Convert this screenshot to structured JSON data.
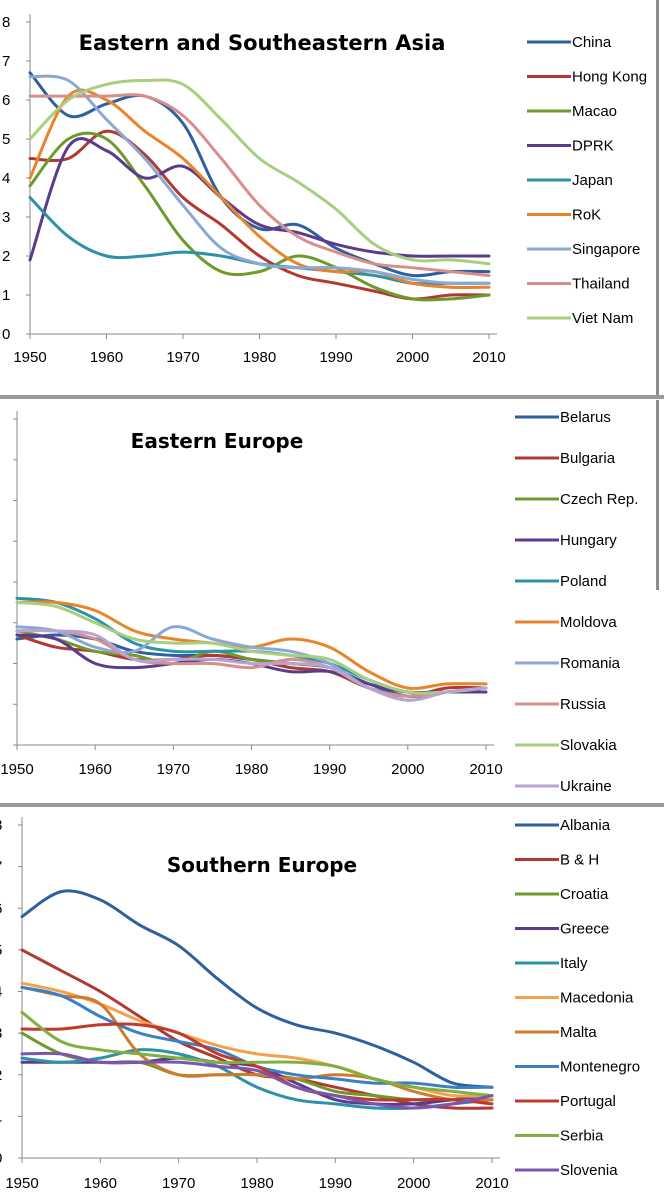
{
  "chart_data": [
    {
      "type": "line",
      "title": "Eastern and Southeastern Asia",
      "x": [
        1950,
        1955,
        1960,
        1965,
        1970,
        1975,
        1980,
        1985,
        1990,
        1995,
        2000,
        2005,
        2010
      ],
      "xticks": [
        "1950",
        "1960",
        "1970",
        "1980",
        "1990",
        "2000",
        "2010"
      ],
      "yticks": [
        "0",
        "1",
        "2",
        "3",
        "4",
        "5",
        "6",
        "7",
        "8"
      ],
      "ylim": [
        0,
        8
      ],
      "series": [
        {
          "name": "China",
          "color": "#2e5f9e",
          "values": [
            6.7,
            5.6,
            5.9,
            6.1,
            5.4,
            3.5,
            2.7,
            2.8,
            2.2,
            1.8,
            1.5,
            1.6,
            1.6
          ]
        },
        {
          "name": "Hong Kong",
          "color": "#b03a32",
          "values": [
            4.5,
            4.5,
            5.2,
            4.6,
            3.5,
            2.8,
            2.0,
            1.5,
            1.3,
            1.1,
            0.9,
            1.0,
            1.0
          ]
        },
        {
          "name": "Macao",
          "color": "#6e9a2c",
          "values": [
            3.8,
            5.0,
            5.0,
            3.8,
            2.4,
            1.6,
            1.6,
            2.0,
            1.7,
            1.2,
            0.9,
            0.9,
            1.0
          ]
        },
        {
          "name": "DPRK",
          "color": "#5c3b8c",
          "values": [
            1.9,
            4.8,
            4.7,
            4.0,
            4.3,
            3.5,
            2.8,
            2.6,
            2.3,
            2.1,
            2.0,
            2.0,
            2.0
          ]
        },
        {
          "name": "Japan",
          "color": "#2d91a8",
          "values": [
            3.5,
            2.5,
            2.0,
            2.0,
            2.1,
            2.0,
            1.8,
            1.7,
            1.6,
            1.5,
            1.3,
            1.3,
            1.3
          ]
        },
        {
          "name": "RoK",
          "color": "#e8842a",
          "values": [
            4.0,
            6.1,
            6.0,
            5.2,
            4.5,
            3.5,
            2.5,
            1.8,
            1.6,
            1.6,
            1.3,
            1.2,
            1.2
          ]
        },
        {
          "name": "Singapore",
          "color": "#8aa8d6",
          "values": [
            6.6,
            6.5,
            5.5,
            4.5,
            3.3,
            2.2,
            1.8,
            1.7,
            1.7,
            1.6,
            1.4,
            1.3,
            1.3
          ]
        },
        {
          "name": "Thailand",
          "color": "#d98e8e",
          "values": [
            6.1,
            6.1,
            6.1,
            6.1,
            5.6,
            4.5,
            3.3,
            2.5,
            2.1,
            1.8,
            1.7,
            1.6,
            1.5
          ]
        },
        {
          "name": "Viet Nam",
          "color": "#a8cf7e",
          "values": [
            5.0,
            6.0,
            6.4,
            6.5,
            6.4,
            5.5,
            4.5,
            3.9,
            3.2,
            2.3,
            1.9,
            1.9,
            1.8
          ]
        }
      ]
    },
    {
      "type": "line",
      "title": "Eastern Europe",
      "x": [
        1950,
        1955,
        1960,
        1965,
        1970,
        1975,
        1980,
        1985,
        1990,
        1995,
        2000,
        2005,
        2010
      ],
      "xticks": [
        "1950",
        "1960",
        "1970",
        "1980",
        "1990",
        "2000",
        "2010"
      ],
      "yticks": [],
      "ylim": [
        0,
        8
      ],
      "series": [
        {
          "name": "Belarus",
          "color": "#2e5f9e",
          "values": [
            2.6,
            2.7,
            2.6,
            2.3,
            2.2,
            2.2,
            2.1,
            2.0,
            1.9,
            1.5,
            1.2,
            1.3,
            1.4
          ]
        },
        {
          "name": "Bulgaria",
          "color": "#b03a32",
          "values": [
            2.7,
            2.4,
            2.3,
            2.1,
            2.1,
            2.2,
            2.1,
            1.9,
            1.8,
            1.4,
            1.2,
            1.4,
            1.4
          ]
        },
        {
          "name": "Czech Rep.",
          "color": "#6e9a2c",
          "values": [
            2.8,
            2.6,
            2.3,
            2.2,
            2.0,
            2.3,
            2.1,
            2.0,
            1.9,
            1.4,
            1.1,
            1.3,
            1.4
          ]
        },
        {
          "name": "Hungary",
          "color": "#5c3b8c",
          "values": [
            2.7,
            2.6,
            2.0,
            1.9,
            2.0,
            2.1,
            2.0,
            1.8,
            1.8,
            1.5,
            1.3,
            1.3,
            1.3
          ]
        },
        {
          "name": "Poland",
          "color": "#2d91a8",
          "values": [
            3.6,
            3.5,
            3.1,
            2.5,
            2.3,
            2.3,
            2.3,
            2.2,
            2.0,
            1.6,
            1.3,
            1.3,
            1.4
          ]
        },
        {
          "name": "Moldova",
          "color": "#e8842a",
          "values": [
            3.5,
            3.5,
            3.3,
            2.8,
            2.6,
            2.5,
            2.4,
            2.6,
            2.4,
            1.8,
            1.4,
            1.5,
            1.5
          ]
        },
        {
          "name": "Romania",
          "color": "#8aa8d6",
          "values": [
            2.9,
            2.8,
            2.4,
            2.3,
            2.9,
            2.6,
            2.4,
            2.3,
            2.0,
            1.4,
            1.2,
            1.3,
            1.4
          ]
        },
        {
          "name": "Russia",
          "color": "#d98e8e",
          "values": [
            2.8,
            2.8,
            2.6,
            2.1,
            2.0,
            2.0,
            1.9,
            2.1,
            1.9,
            1.4,
            1.2,
            1.3,
            1.4
          ]
        },
        {
          "name": "Slovakia",
          "color": "#a8cf7e",
          "values": [
            3.5,
            3.4,
            3.0,
            2.6,
            2.5,
            2.5,
            2.3,
            2.2,
            2.1,
            1.6,
            1.3,
            1.3,
            1.4
          ]
        },
        {
          "name": "Ukraine",
          "color": "#b7a3d4",
          "values": [
            2.8,
            2.8,
            2.7,
            2.1,
            2.1,
            2.1,
            2.0,
            2.0,
            1.9,
            1.4,
            1.1,
            1.3,
            1.4
          ]
        }
      ]
    },
    {
      "type": "line",
      "title": "Southern Europe",
      "x": [
        1950,
        1955,
        1960,
        1965,
        1970,
        1975,
        1980,
        1985,
        1990,
        1995,
        2000,
        2005,
        2010
      ],
      "xticks": [
        "1950",
        "1960",
        "1970",
        "1980",
        "1990",
        "2000",
        "2010"
      ],
      "yticks": [
        "0",
        "1",
        "2",
        "3",
        "4",
        "5",
        "6",
        "7",
        "8"
      ],
      "ylim": [
        0,
        8
      ],
      "series": [
        {
          "name": "Albania",
          "color": "#2e5f9e",
          "values": [
            5.8,
            6.4,
            6.2,
            5.6,
            5.1,
            4.3,
            3.6,
            3.2,
            3.0,
            2.7,
            2.3,
            1.8,
            1.7
          ]
        },
        {
          "name": "B & H",
          "color": "#b03a32",
          "values": [
            5.0,
            4.5,
            4.0,
            3.4,
            2.8,
            2.4,
            2.0,
            1.9,
            1.7,
            1.5,
            1.3,
            1.2,
            1.2
          ]
        },
        {
          "name": "Croatia",
          "color": "#6e9a2c",
          "values": [
            3.0,
            2.5,
            2.3,
            2.3,
            2.0,
            2.0,
            2.0,
            1.9,
            1.6,
            1.5,
            1.4,
            1.4,
            1.5
          ]
        },
        {
          "name": "Greece",
          "color": "#5c3b8c",
          "values": [
            2.3,
            2.3,
            2.3,
            2.3,
            2.4,
            2.3,
            2.2,
            1.8,
            1.4,
            1.3,
            1.3,
            1.4,
            1.5
          ]
        },
        {
          "name": "Italy",
          "color": "#2d91a8",
          "values": [
            2.4,
            2.3,
            2.4,
            2.6,
            2.5,
            2.2,
            1.7,
            1.4,
            1.3,
            1.2,
            1.2,
            1.3,
            1.4
          ]
        },
        {
          "name": "Macedonia",
          "color": "#f5a04a",
          "values": [
            4.2,
            4.0,
            3.7,
            3.3,
            3.0,
            2.7,
            2.5,
            2.4,
            2.2,
            1.9,
            1.7,
            1.5,
            1.5
          ]
        },
        {
          "name": "Malta",
          "color": "#d07a2e",
          "values": [
            4.1,
            3.9,
            3.7,
            2.5,
            2.0,
            2.0,
            2.0,
            1.9,
            2.0,
            1.9,
            1.6,
            1.4,
            1.4
          ]
        },
        {
          "name": "Montenegro",
          "color": "#3b7fc4",
          "values": [
            4.1,
            3.9,
            3.4,
            3.0,
            2.8,
            2.6,
            2.2,
            2.0,
            1.9,
            1.8,
            1.8,
            1.7,
            1.7
          ]
        },
        {
          "name": "Portugal",
          "color": "#c0392b",
          "values": [
            3.1,
            3.1,
            3.2,
            3.2,
            3.0,
            2.5,
            2.2,
            1.7,
            1.5,
            1.4,
            1.4,
            1.4,
            1.3
          ]
        },
        {
          "name": "Serbia",
          "color": "#7fb040",
          "values": [
            3.5,
            2.8,
            2.6,
            2.5,
            2.4,
            2.3,
            2.3,
            2.3,
            2.2,
            1.9,
            1.7,
            1.6,
            1.5
          ]
        },
        {
          "name": "Slovenia",
          "color": "#7a56b0",
          "values": [
            2.5,
            2.5,
            2.3,
            2.3,
            2.3,
            2.2,
            2.1,
            1.7,
            1.5,
            1.3,
            1.2,
            1.3,
            1.5
          ]
        }
      ]
    }
  ]
}
